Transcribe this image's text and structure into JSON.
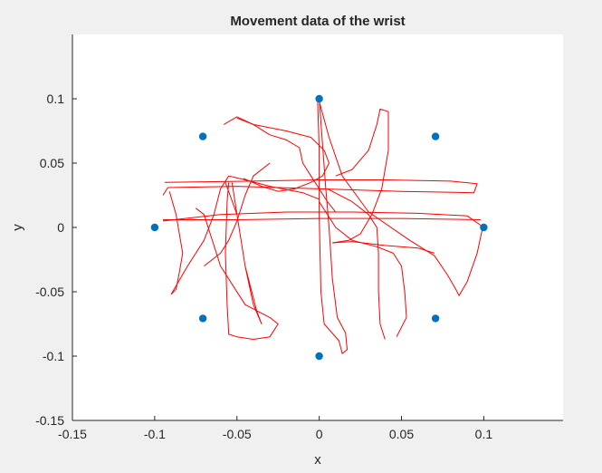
{
  "chart_data": {
    "type": "scatter",
    "title": "Movement data of the wrist",
    "xlabel": "x",
    "ylabel": "y",
    "xlim": [
      -0.15,
      0.15
    ],
    "ylim": [
      -0.15,
      0.15
    ],
    "xticks": [
      -0.15,
      -0.1,
      -0.05,
      0,
      0.05,
      0.1
    ],
    "xtick_labels": [
      "-0.15",
      "-0.1",
      "-0.05",
      "0",
      "0.05",
      "0.1"
    ],
    "yticks": [
      -0.15,
      -0.1,
      -0.05,
      0,
      0.05,
      0.1
    ],
    "ytick_labels": [
      "-0.15",
      "-0.1",
      "-0.05",
      "0",
      "0.05",
      "0.1"
    ],
    "grid": false,
    "series": [
      {
        "kind": "markers",
        "color": "#0072bd",
        "points": [
          [
            0,
            0.1
          ],
          [
            0.0707,
            0.0707
          ],
          [
            0.1,
            0
          ],
          [
            0.0707,
            -0.0707
          ],
          [
            0,
            -0.1
          ],
          [
            -0.0707,
            -0.0707
          ],
          [
            -0.1,
            0
          ],
          [
            -0.0707,
            0.0707
          ]
        ]
      },
      {
        "kind": "line",
        "color": "#ff0000",
        "paths": [
          [
            [
              -0.001,
              0.101
            ],
            [
              0.0,
              0.06
            ],
            [
              0.0,
              0.01
            ],
            [
              0.001,
              -0.05
            ],
            [
              0.003,
              -0.075
            ],
            [
              0.012,
              -0.088
            ],
            [
              0.014,
              -0.098
            ],
            [
              0.017,
              -0.095
            ],
            [
              0.016,
              -0.082
            ],
            [
              0.011,
              -0.07
            ],
            [
              0.008,
              -0.04
            ],
            [
              0.006,
              0.0
            ],
            [
              0.004,
              0.03
            ],
            [
              0.0,
              0.1
            ]
          ],
          [
            [
              0.0,
              0.098
            ],
            [
              0.006,
              0.07
            ],
            [
              0.014,
              0.04
            ],
            [
              0.03,
              0.012
            ],
            [
              0.055,
              -0.01
            ],
            [
              0.07,
              -0.022
            ],
            [
              0.078,
              -0.037
            ],
            [
              0.083,
              -0.048
            ],
            [
              0.085,
              -0.053
            ],
            [
              0.09,
              -0.042
            ],
            [
              0.096,
              -0.02
            ],
            [
              0.099,
              -0.002
            ],
            [
              0.1,
              0.0
            ]
          ],
          [
            [
              -0.095,
              0.005
            ],
            [
              -0.06,
              0.01
            ],
            [
              -0.02,
              0.012
            ],
            [
              0.02,
              0.012
            ],
            [
              0.06,
              0.011
            ],
            [
              0.09,
              0.009
            ],
            [
              0.1,
              0.0
            ]
          ],
          [
            [
              -0.095,
              0.006
            ],
            [
              -0.05,
              0.006
            ],
            [
              0.0,
              0.007
            ],
            [
              0.05,
              0.007
            ],
            [
              0.098,
              0.006
            ]
          ],
          [
            [
              -0.094,
              0.035
            ],
            [
              -0.04,
              0.036
            ],
            [
              0.0,
              0.037
            ],
            [
              0.04,
              0.037
            ],
            [
              0.08,
              0.036
            ],
            [
              0.096,
              0.034
            ],
            [
              0.094,
              0.027
            ],
            [
              0.05,
              0.028
            ],
            [
              0.0,
              0.03
            ],
            [
              -0.05,
              0.032
            ],
            [
              -0.092,
              0.031
            ],
            [
              -0.095,
              0.025
            ]
          ],
          [
            [
              -0.091,
              0.028
            ],
            [
              -0.087,
              0.01
            ],
            [
              -0.083,
              -0.02
            ],
            [
              -0.085,
              -0.035
            ],
            [
              -0.087,
              -0.048
            ],
            [
              -0.09,
              -0.052
            ]
          ],
          [
            [
              -0.09,
              -0.052
            ],
            [
              -0.08,
              -0.03
            ],
            [
              -0.07,
              -0.01
            ],
            [
              -0.064,
              0.01
            ],
            [
              -0.06,
              0.03
            ],
            [
              -0.055,
              0.04
            ],
            [
              -0.045,
              0.037
            ],
            [
              -0.03,
              0.032
            ],
            [
              -0.01,
              0.027
            ],
            [
              0.0,
              0.022
            ]
          ],
          [
            [
              -0.075,
              0.015
            ],
            [
              -0.07,
              0.01
            ],
            [
              -0.06,
              -0.03
            ],
            [
              -0.045,
              -0.06
            ],
            [
              -0.03,
              -0.07
            ],
            [
              -0.025,
              -0.075
            ],
            [
              -0.03,
              -0.085
            ],
            [
              -0.04,
              -0.087
            ],
            [
              -0.05,
              -0.085
            ],
            [
              -0.055,
              -0.083
            ],
            [
              -0.056,
              -0.06
            ],
            [
              -0.057,
              -0.02
            ],
            [
              -0.056,
              0.02
            ],
            [
              -0.055,
              0.035
            ]
          ],
          [
            [
              -0.057,
              0.035
            ],
            [
              -0.05,
              0.01
            ],
            [
              -0.045,
              -0.03
            ],
            [
              -0.04,
              -0.06
            ],
            [
              -0.035,
              -0.075
            ],
            [
              -0.038,
              -0.065
            ],
            [
              -0.045,
              -0.03
            ],
            [
              -0.05,
              0.01
            ],
            [
              -0.053,
              0.035
            ]
          ],
          [
            [
              -0.05,
              0.085
            ],
            [
              -0.04,
              0.08
            ],
            [
              -0.02,
              0.075
            ],
            [
              -0.005,
              0.07
            ],
            [
              0.003,
              0.06
            ],
            [
              0.006,
              0.05
            ],
            [
              0.002,
              0.04
            ],
            [
              -0.005,
              0.035
            ],
            [
              -0.015,
              0.03
            ],
            [
              -0.025,
              0.028
            ],
            [
              -0.035,
              0.032
            ],
            [
              -0.046,
              0.038
            ]
          ],
          [
            [
              -0.058,
              0.08
            ],
            [
              -0.05,
              0.086
            ],
            [
              -0.04,
              0.08
            ],
            [
              -0.03,
              0.072
            ],
            [
              -0.02,
              0.068
            ],
            [
              -0.012,
              0.062
            ],
            [
              -0.01,
              0.05
            ],
            [
              -0.005,
              0.04
            ],
            [
              0.0,
              0.03
            ],
            [
              0.005,
              0.02
            ],
            [
              0.01,
              0.012
            ]
          ],
          [
            [
              0.0,
              0.02
            ],
            [
              0.01,
              0.0
            ],
            [
              0.02,
              -0.01
            ],
            [
              0.035,
              -0.015
            ],
            [
              0.045,
              -0.02
            ],
            [
              0.05,
              -0.03
            ],
            [
              0.052,
              -0.05
            ],
            [
              0.053,
              -0.07
            ],
            [
              0.047,
              -0.085
            ]
          ],
          [
            [
              0.005,
              0.03
            ],
            [
              0.02,
              0.02
            ],
            [
              0.03,
              0.01
            ],
            [
              0.035,
              0.0
            ],
            [
              0.036,
              -0.02
            ],
            [
              0.036,
              -0.05
            ],
            [
              0.037,
              -0.075
            ],
            [
              0.04,
              -0.087
            ]
          ],
          [
            [
              0.01,
              0.04
            ],
            [
              0.02,
              0.045
            ],
            [
              0.03,
              0.06
            ],
            [
              0.035,
              0.08
            ],
            [
              0.037,
              0.092
            ],
            [
              0.042,
              0.09
            ],
            [
              0.042,
              0.06
            ],
            [
              0.038,
              0.03
            ],
            [
              0.032,
              0.01
            ],
            [
              0.025,
              -0.005
            ],
            [
              0.018,
              -0.01
            ],
            [
              0.008,
              -0.012
            ]
          ],
          [
            [
              0.008,
              -0.012
            ],
            [
              0.02,
              -0.011
            ],
            [
              0.04,
              -0.014
            ],
            [
              0.06,
              -0.016
            ],
            [
              0.07,
              -0.02
            ]
          ],
          [
            [
              -0.03,
              0.05
            ],
            [
              -0.04,
              0.04
            ],
            [
              -0.045,
              0.025
            ],
            [
              -0.05,
              0.005
            ],
            [
              -0.055,
              -0.01
            ],
            [
              -0.06,
              -0.02
            ],
            [
              -0.065,
              -0.025
            ],
            [
              -0.07,
              -0.03
            ]
          ]
        ]
      }
    ]
  }
}
